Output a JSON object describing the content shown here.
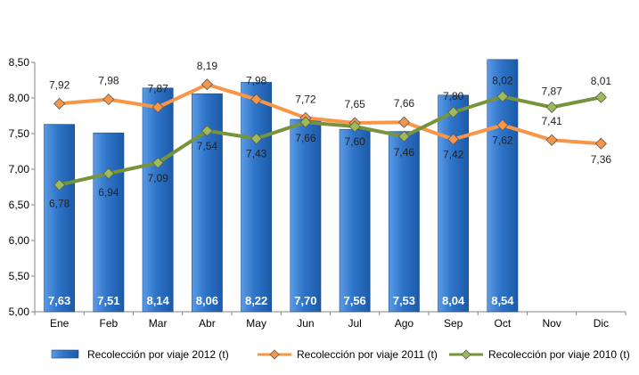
{
  "chart_data": {
    "type": "bar",
    "title": "",
    "xlabel": "",
    "ylabel": "",
    "categories": [
      "Ene",
      "Feb",
      "Mar",
      "Abr",
      "May",
      "Jun",
      "Jul",
      "Ago",
      "Sep",
      "Oct",
      "Nov",
      "Dic"
    ],
    "y_ticks": [
      "5,00",
      "5,50",
      "6,00",
      "6,50",
      "7,00",
      "7,50",
      "8,00",
      "8,50"
    ],
    "ylim": [
      5.0,
      8.5
    ],
    "grid": false,
    "legend_position": "bottom",
    "series": [
      {
        "name": "Recolección por viaje 2012 (t)",
        "type": "bar",
        "color": "#2F74C8",
        "values": [
          7.63,
          7.51,
          8.14,
          8.06,
          8.22,
          7.7,
          7.56,
          7.53,
          8.04,
          8.54,
          null,
          null
        ],
        "labels": [
          "7,63",
          "7,51",
          "8,14",
          "8,06",
          "8,22",
          "7,70",
          "7,56",
          "7,53",
          "8,04",
          "8,54",
          "",
          ""
        ]
      },
      {
        "name": "Recolección por viaje 2011 (t)",
        "type": "line",
        "color": "#F79646",
        "marker_color": "#F79646",
        "values": [
          7.92,
          7.98,
          7.87,
          8.19,
          7.98,
          7.72,
          7.65,
          7.66,
          7.42,
          7.62,
          7.41,
          7.36
        ],
        "labels": [
          "7,92",
          "7,98",
          "7,87",
          "8,19",
          "7,98",
          "7,72",
          "7,65",
          "7,66",
          "7,42",
          "7,62",
          "7,41",
          "7,36"
        ]
      },
      {
        "name": "Recolección por viaje 2010 (t)",
        "type": "line",
        "color": "#77933C",
        "marker_color": "#9BBB59",
        "values": [
          6.78,
          6.94,
          7.09,
          7.54,
          7.43,
          7.66,
          7.6,
          7.46,
          7.8,
          8.02,
          7.87,
          8.01
        ],
        "labels": [
          "6,78",
          "6,94",
          "7,09",
          "7,54",
          "7,43",
          "7,66",
          "7,60",
          "7,46",
          "7,80",
          "8,02",
          "7,87",
          "8,01"
        ]
      }
    ]
  }
}
